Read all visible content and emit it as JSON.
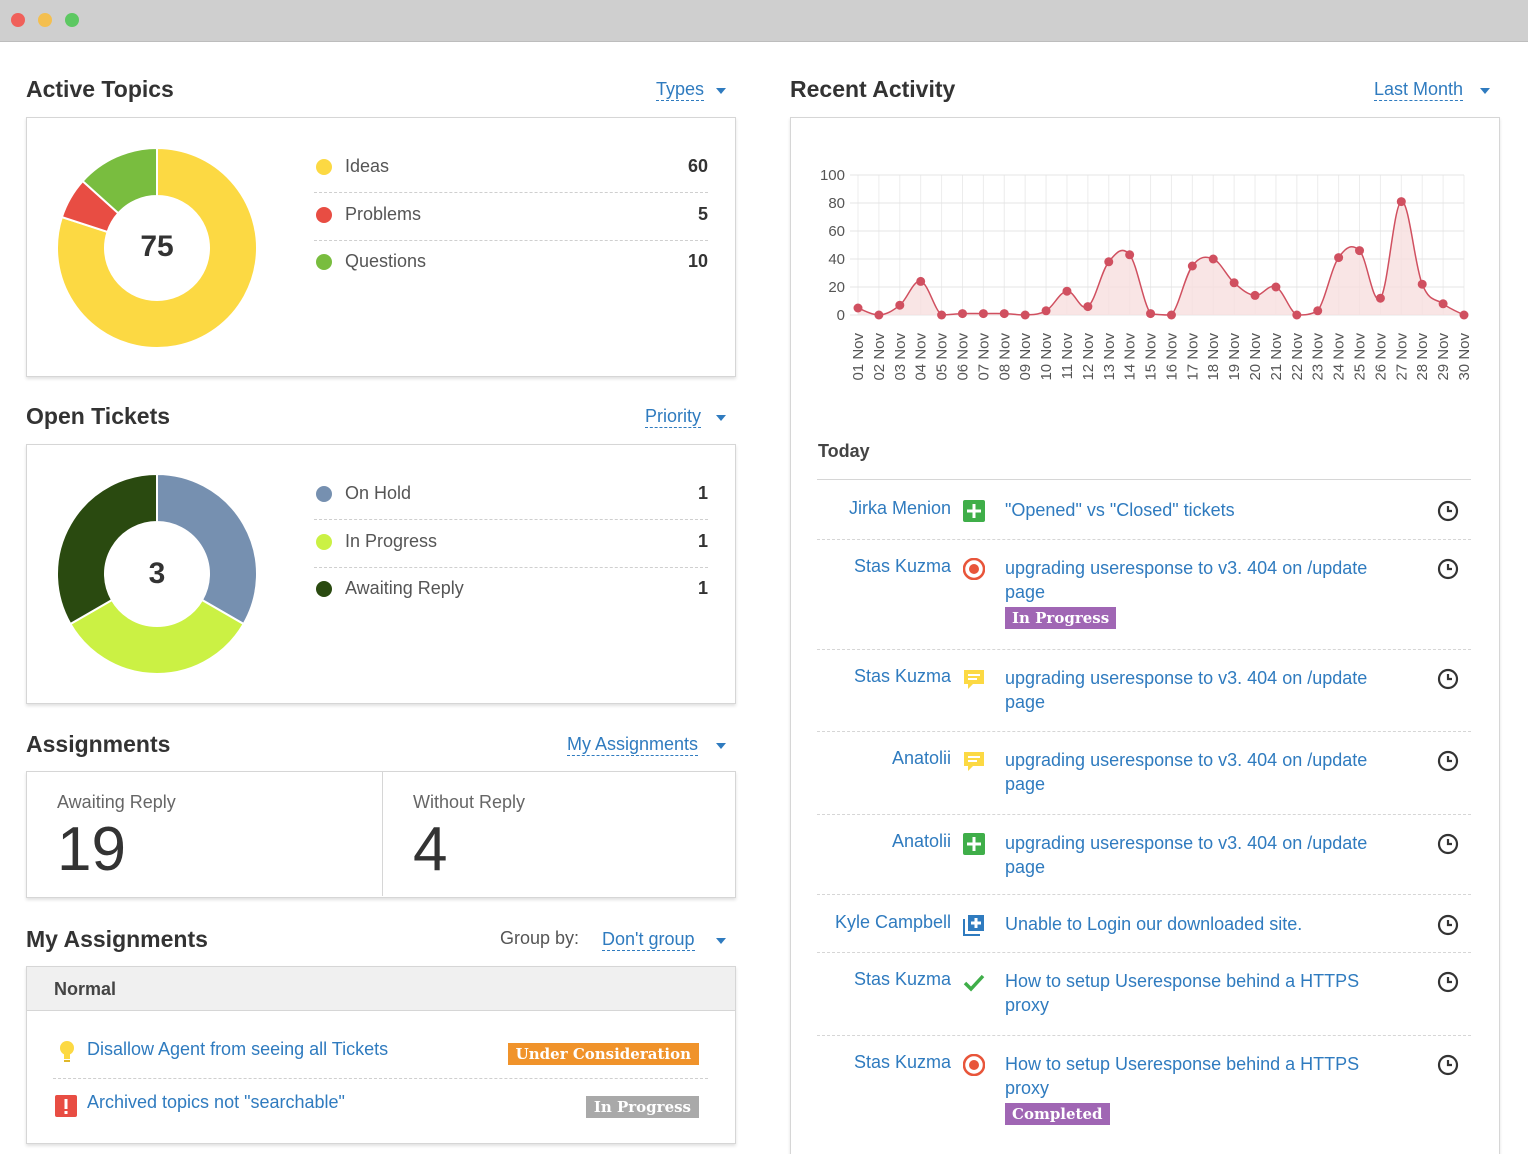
{
  "colors": {
    "ideas": "#fcd943",
    "problems": "#e84d43",
    "questions": "#79bd3f",
    "on_hold": "#7690b0",
    "in_progress": "#cbf144",
    "awaiting_reply": "#2a4a10",
    "link": "#2f7bbf",
    "badge_purple": "#a066b4",
    "badge_orange": "#f0932b",
    "badge_gray": "#a9a9a9",
    "chart_line": "#d05060"
  },
  "active_topics": {
    "title": "Active Topics",
    "dropdown": "Types",
    "total": "75",
    "items": [
      {
        "label": "Ideas",
        "value": "60",
        "n": 60
      },
      {
        "label": "Problems",
        "value": "5",
        "n": 5
      },
      {
        "label": "Questions",
        "value": "10",
        "n": 10
      }
    ]
  },
  "open_tickets": {
    "title": "Open Tickets",
    "dropdown": "Priority",
    "total": "3",
    "items": [
      {
        "label": "On Hold",
        "value": "1",
        "n": 1
      },
      {
        "label": "In Progress",
        "value": "1",
        "n": 1
      },
      {
        "label": "Awaiting Reply",
        "value": "1",
        "n": 1
      }
    ]
  },
  "assignments": {
    "title": "Assignments",
    "dropdown": "My Assignments",
    "awaiting_label": "Awaiting Reply",
    "awaiting_value": "19",
    "without_label": "Without Reply",
    "without_value": "4"
  },
  "my_assignments": {
    "title": "My Assignments",
    "group_by_label": "Group by:",
    "group_by_value": "Don't group",
    "group_header": "Normal",
    "rows": [
      {
        "icon": "lightbulb-icon",
        "title": "Disallow Agent from seeing all Tickets",
        "badge": "Under Consideration"
      },
      {
        "icon": "exclamation-icon",
        "title": "Archived topics not \"searchable\"",
        "badge": "In Progress"
      }
    ]
  },
  "recent_activity": {
    "title": "Recent Activity",
    "dropdown": "Last Month",
    "day_header": "Today",
    "rows": [
      {
        "user": "Jirka Menion",
        "icon": "plus-icon",
        "text": "\"Opened\" vs \"Closed\" tickets",
        "badge": ""
      },
      {
        "user": "Stas Kuzma",
        "icon": "target-icon",
        "text": "upgrading useresponse to v3. 404 on /update page",
        "badge": "In Progress"
      },
      {
        "user": "Stas Kuzma",
        "icon": "comment-icon",
        "text": "upgrading useresponse to v3. 404 on /update page",
        "badge": ""
      },
      {
        "user": "Anatolii",
        "icon": "comment-icon",
        "text": "upgrading useresponse to v3. 404 on /update page",
        "badge": ""
      },
      {
        "user": "Anatolii",
        "icon": "plus-icon",
        "text": "upgrading useresponse to v3. 404 on /update page",
        "badge": ""
      },
      {
        "user": "Kyle Campbell",
        "icon": "add-box-icon",
        "text": "Unable to Login our downloaded site.",
        "badge": ""
      },
      {
        "user": "Stas Kuzma",
        "icon": "check-icon",
        "text": "How to setup Useresponse behind a HTTPS proxy",
        "badge": ""
      },
      {
        "user": "Stas Kuzma",
        "icon": "target-icon",
        "text": "How to setup Useresponse behind a HTTPS proxy",
        "badge": "Completed"
      }
    ]
  },
  "chart_data": {
    "type": "line",
    "title": "",
    "xlabel": "",
    "ylabel": "",
    "ylim": [
      0,
      100
    ],
    "yticks": [
      0,
      20,
      40,
      60,
      80,
      100
    ],
    "grid": true,
    "categories": [
      "01 Nov",
      "02 Nov",
      "03 Nov",
      "04 Nov",
      "05 Nov",
      "06 Nov",
      "07 Nov",
      "08 Nov",
      "09 Nov",
      "10 Nov",
      "11 Nov",
      "12 Nov",
      "13 Nov",
      "14 Nov",
      "15 Nov",
      "16 Nov",
      "17 Nov",
      "18 Nov",
      "19 Nov",
      "20 Nov",
      "21 Nov",
      "22 Nov",
      "23 Nov",
      "24 Nov",
      "25 Nov",
      "26 Nov",
      "27 Nov",
      "28 Nov",
      "29 Nov",
      "30 Nov"
    ],
    "series": [
      {
        "values": [
          5,
          0,
          7,
          24,
          0,
          1,
          1,
          1,
          0,
          3,
          17,
          6,
          38,
          43,
          1,
          0,
          35,
          40,
          23,
          14,
          20,
          0,
          3,
          41,
          46,
          12,
          81,
          22,
          8,
          0
        ]
      }
    ]
  }
}
